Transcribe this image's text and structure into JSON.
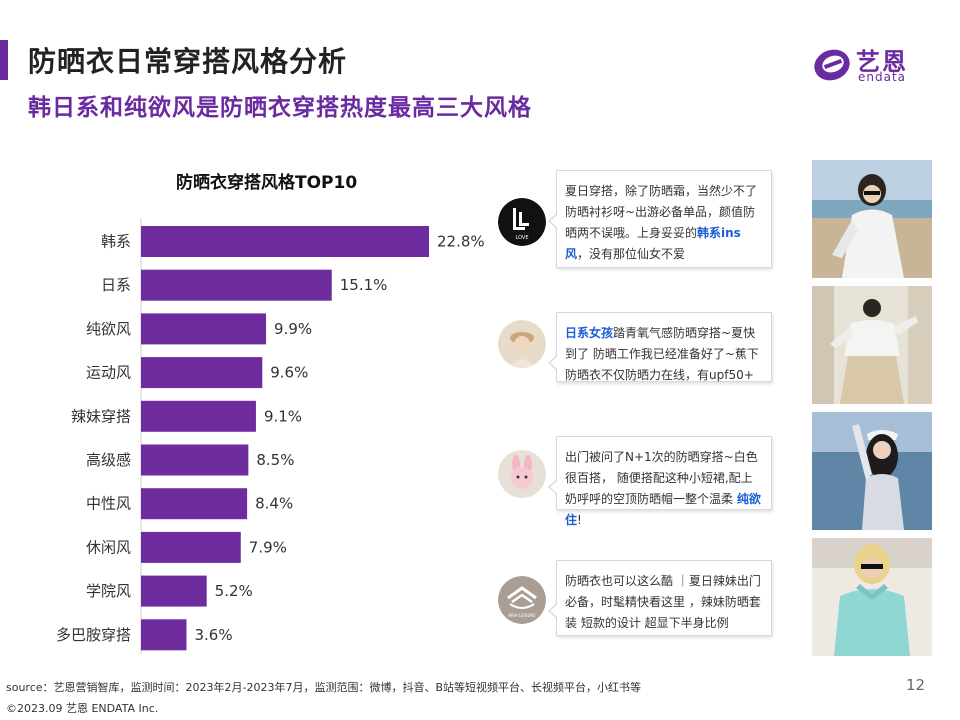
{
  "header": {
    "title": "防晒衣日常穿搭风格分析",
    "subtitle": "韩日系和纯欲风是防晒衣穿搭热度最高三大风格"
  },
  "logo": {
    "cn": "艺恩",
    "en": "endata"
  },
  "colors": {
    "accent": "#6a2aa0",
    "bar": "#6f2c9f",
    "highlight": "#1a5fd6"
  },
  "chart_data": {
    "type": "bar",
    "orientation": "horizontal",
    "title": "防晒衣穿搭风格TOP10",
    "categories": [
      "韩系",
      "日系",
      "纯欲风",
      "运动风",
      "辣妹穿搭",
      "高级感",
      "中性风",
      "休闲风",
      "学院风",
      "多巴胺穿搭"
    ],
    "values": [
      22.8,
      15.1,
      9.9,
      9.6,
      9.1,
      8.5,
      8.4,
      7.9,
      5.2,
      3.6
    ],
    "value_labels": [
      "22.8%",
      "15.1%",
      "9.9%",
      "9.6%",
      "9.1%",
      "8.5%",
      "8.4%",
      "7.9%",
      "5.2%",
      "3.6%"
    ],
    "unit": "%",
    "grid": false,
    "legend": "none"
  },
  "posts": [
    {
      "avatar_icon": "logo-L-icon",
      "avatar_text": "LOVE",
      "text_before": "夏日穿搭，除了防晒霜，当然少不了防晒衬衫呀~出游必备单品，颜值防晒两不误哦。上身妥妥的",
      "highlight": "韩系ins风",
      "text_after": "，没有那位仙女不爱"
    },
    {
      "avatar_icon": "girl-avatar-icon",
      "avatar_text": "",
      "text_before": "",
      "highlight": "日系女孩",
      "text_after": "踏青氧气感防晒穿搭~夏快到了 防晒工作我已经准备好了~蕉下防晒衣不仅防晒力在线，有upf50+"
    },
    {
      "avatar_icon": "bunny-avatar-icon",
      "avatar_text": "",
      "text_before": "出门被问了N+1次的防晒穿搭~白色很百搭， 随便搭配这种小短裙,配上奶呼呼的空顶防晒帽一整个温柔 ",
      "highlight": "纯欲住",
      "text_after": "!"
    },
    {
      "avatar_icon": "brand-emblem-icon",
      "avatar_text": "ARIA LEISURE",
      "text_before": "防晒衣也可以这么酷 ｜夏日辣妹出门必备，时髦精快看这里 ，辣妹防晒套装 短款的设计 超显下半身比例",
      "highlight": "",
      "text_after": ""
    }
  ],
  "photos": [
    "beach-woman-photo",
    "white-jacket-photo",
    "sea-cap-photo",
    "teal-jacket-photo"
  ],
  "footer": {
    "source": "source：艺恩营销智库，监测时间：2023年2月-2023年7月，监测范围：微博，抖音、B站等短视频平台、长视频平台，小红书等",
    "copyright": "©2023.09 艺恩 ENDATA Inc.",
    "page": "12"
  }
}
